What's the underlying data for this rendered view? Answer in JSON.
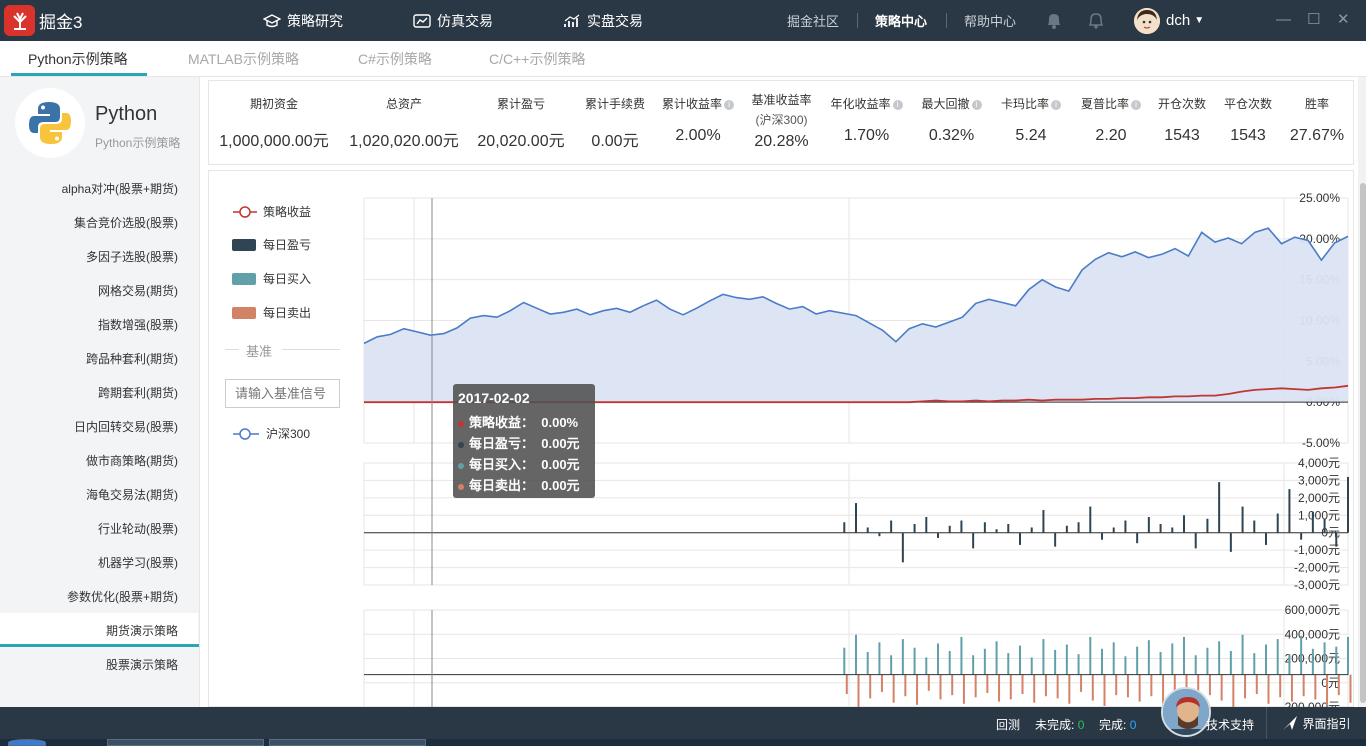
{
  "app": {
    "name": "掘金3"
  },
  "nav": [
    {
      "label": "策略研究",
      "icon": "graduation-cap-icon"
    },
    {
      "label": "仿真交易",
      "icon": "chart-box-icon"
    },
    {
      "label": "实盘交易",
      "icon": "bar-trend-icon"
    }
  ],
  "toplinks": [
    "掘金社区",
    "策略中心",
    "帮助中心"
  ],
  "active_toplink": "策略中心",
  "user": {
    "name": "dch"
  },
  "tabs": [
    "Python示例策略",
    "MATLAB示例策略",
    "C#示例策略",
    "C/C++示例策略"
  ],
  "active_tab": "Python示例策略",
  "sidebar": {
    "title": "Python",
    "subtitle": "Python示例策略",
    "items": [
      "alpha对冲(股票+期货)",
      "集合竞价选股(股票)",
      "多因子选股(股票)",
      "网格交易(期货)",
      "指数增强(股票)",
      "跨品种套利(期货)",
      "跨期套利(期货)",
      "日内回转交易(股票)",
      "做市商策略(期货)",
      "海龟交易法(期货)",
      "行业轮动(股票)",
      "机器学习(股票)",
      "参数优化(股票+期货)",
      "期货演示策略",
      "股票演示策略"
    ],
    "active_item": "期货演示策略"
  },
  "stats": [
    {
      "label": "期初资金",
      "value": "1,000,000.00元"
    },
    {
      "label": "总资产",
      "value": "1,020,020.00元"
    },
    {
      "label": "累计盈亏",
      "value": "20,020.00元"
    },
    {
      "label": "累计手续费",
      "value": "0.00元"
    },
    {
      "label": "累计收益率",
      "value": "2.00%",
      "info": true
    },
    {
      "label": "基准收益率",
      "sub": "(沪深300)",
      "value": "20.28%"
    },
    {
      "label": "年化收益率",
      "value": "1.70%",
      "info": true
    },
    {
      "label": "最大回撤",
      "value": "0.32%",
      "info": true
    },
    {
      "label": "卡玛比率",
      "value": "5.24",
      "info": true
    },
    {
      "label": "夏普比率",
      "value": "2.20",
      "info": true
    },
    {
      "label": "开仓次数",
      "value": "1543"
    },
    {
      "label": "平仓次数",
      "value": "1543"
    },
    {
      "label": "胜率",
      "value": "27.67%"
    }
  ],
  "legend": {
    "strategy": "策略收益",
    "daily_pnl": "每日盈亏",
    "daily_buy": "每日买入",
    "daily_sell": "每日卖出",
    "benchmark_heading": "基准",
    "benchmark_placeholder": "请输入基准信号",
    "benchmark": "沪深300"
  },
  "colors": {
    "strategy": "#c23531",
    "pnl": "#2f4554",
    "buy": "#61a0a8",
    "sell": "#d48265",
    "benchmark": "#4a7cc7",
    "benchmark_fill": "#dbe4f3",
    "accent": "#2aa7b3"
  },
  "tooltip": {
    "date": "2017-02-02",
    "rows": [
      {
        "label": "策略收益：",
        "value": "0.00%"
      },
      {
        "label": "每日盈亏：",
        "value": "0.00元"
      },
      {
        "label": "每日买入：",
        "value": "0.00元"
      },
      {
        "label": "每日卖出：",
        "value": "0.00元"
      }
    ]
  },
  "chart_data": [
    {
      "type": "line",
      "ylim": [
        -5,
        25
      ],
      "ytick_labels": [
        "25.00%",
        "20.00%",
        "15.00%",
        "10.00%",
        "5.00%",
        "0.00%",
        "-5.00%"
      ],
      "series": [
        {
          "name": "沪深300",
          "values": [
            7.2,
            8.0,
            8.3,
            9.0,
            8.6,
            8.2,
            8.4,
            9.1,
            10.3,
            10.6,
            10.4,
            11.2,
            12.2,
            11.5,
            10.8,
            11.0,
            11.4,
            10.7,
            11.2,
            11.5,
            11.0,
            11.8,
            12.5,
            11.4,
            10.7,
            11.5,
            12.4,
            13.2,
            12.8,
            12.6,
            12.9,
            12.1,
            11.4,
            11.7,
            10.8,
            11.2,
            10.9,
            10.6,
            9.7,
            8.8,
            7.4,
            9.0,
            9.6,
            9.2,
            9.8,
            10.4,
            12.1,
            12.6,
            12.2,
            11.8,
            13.8,
            15.0,
            14.1,
            13.6,
            16.2,
            17.5,
            18.3,
            17.8,
            18.4,
            17.7,
            18.1,
            18.8,
            17.9,
            20.8,
            19.6,
            20.1,
            19.4,
            20.8,
            21.3,
            19.4,
            20.2,
            19.8,
            17.4,
            19.5,
            20.3
          ]
        },
        {
          "name": "策略收益",
          "values": [
            0,
            0,
            0,
            0,
            0,
            0,
            0,
            0,
            0,
            0,
            0,
            0,
            0,
            0,
            0,
            0,
            0,
            0,
            0,
            0,
            0,
            0,
            0,
            0,
            0,
            0,
            0,
            0,
            0,
            0,
            0,
            0,
            0,
            0,
            0,
            0,
            0,
            0,
            0,
            0,
            0,
            0,
            0.1,
            0.2,
            0.1,
            0.1,
            0.2,
            0.1,
            0.2,
            0.2,
            0.3,
            0.2,
            0.3,
            0.3,
            0.3,
            0.4,
            0.4,
            0.5,
            0.5,
            0.6,
            0.6,
            0.7,
            0.7,
            0.8,
            0.8,
            1.0,
            1.3,
            1.5,
            1.6,
            1.7,
            1.6,
            1.5,
            1.7,
            1.8,
            2.0
          ]
        }
      ]
    },
    {
      "type": "bar",
      "ylim": [
        -3000,
        4000
      ],
      "ytick_labels": [
        "4,000元",
        "3,000元",
        "2,000元",
        "1,000元",
        "0元",
        "-1,000元",
        "-2,000元",
        "-3,000元"
      ],
      "series": [
        {
          "name": "每日盈亏",
          "values": [
            0,
            0,
            0,
            0,
            0,
            0,
            0,
            0,
            0,
            0,
            0,
            0,
            0,
            0,
            0,
            0,
            0,
            0,
            0,
            0,
            0,
            0,
            0,
            0,
            0,
            0,
            0,
            0,
            0,
            0,
            0,
            0,
            0,
            0,
            0,
            0,
            0,
            0,
            0,
            0,
            0,
            600,
            1700,
            300,
            -200,
            700,
            -1700,
            500,
            900,
            -300,
            400,
            700,
            -900,
            600,
            200,
            500,
            -700,
            300,
            1300,
            -800,
            400,
            600,
            1500,
            -400,
            300,
            700,
            -600,
            900,
            500,
            300,
            1000,
            -900,
            800,
            2900,
            -1100,
            1500,
            700,
            -700,
            1100,
            2500,
            -400,
            1200,
            800,
            -800,
            3200
          ]
        }
      ]
    },
    {
      "type": "bar",
      "ylim": [
        -300000,
        600000
      ],
      "ytick_labels": [
        "600,000元",
        "400,000元",
        "200,000元",
        "0元",
        "-200,000元"
      ],
      "series": [
        {
          "name": "每日买入",
          "values": [
            0,
            0,
            0,
            0,
            0,
            0,
            0,
            0,
            0,
            0,
            0,
            0,
            0,
            0,
            0,
            0,
            0,
            0,
            0,
            0,
            0,
            0,
            0,
            0,
            0,
            0,
            0,
            0,
            0,
            0,
            0,
            0,
            0,
            0,
            0,
            0,
            0,
            0,
            0,
            0,
            0,
            250000,
            370000,
            210000,
            300000,
            180000,
            330000,
            250000,
            160000,
            290000,
            220000,
            350000,
            180000,
            240000,
            310000,
            200000,
            270000,
            160000,
            330000,
            230000,
            280000,
            190000,
            350000,
            240000,
            300000,
            170000,
            260000,
            320000,
            210000,
            290000,
            350000,
            180000,
            250000,
            310000,
            220000,
            370000,
            200000,
            280000,
            330000,
            190000,
            360000,
            240000,
            300000,
            260000,
            350000
          ]
        },
        {
          "name": "每日卖出",
          "values": [
            0,
            0,
            0,
            0,
            0,
            0,
            0,
            0,
            0,
            0,
            0,
            0,
            0,
            0,
            0,
            0,
            0,
            0,
            0,
            0,
            0,
            0,
            0,
            0,
            0,
            0,
            0,
            0,
            0,
            0,
            0,
            0,
            0,
            0,
            0,
            0,
            0,
            0,
            0,
            0,
            0,
            -180000,
            -300000,
            -220000,
            -160000,
            -260000,
            -200000,
            -280000,
            -150000,
            -230000,
            -190000,
            -270000,
            -210000,
            -170000,
            -250000,
            -230000,
            -180000,
            -260000,
            -200000,
            -220000,
            -270000,
            -160000,
            -240000,
            -290000,
            -190000,
            -210000,
            -250000,
            -200000,
            -280000,
            -170000,
            -230000,
            -260000,
            -190000,
            -240000,
            -300000,
            -220000,
            -180000,
            -270000,
            -210000,
            -250000,
            -200000,
            -230000,
            -280000,
            -190000,
            -260000
          ]
        }
      ]
    }
  ],
  "status": {
    "backtest": "回测",
    "unfinished_label": "未完成:",
    "unfinished": "0",
    "finished_label": "完成:",
    "finished": "0",
    "support": "技术支持",
    "guide": "界面指引"
  }
}
